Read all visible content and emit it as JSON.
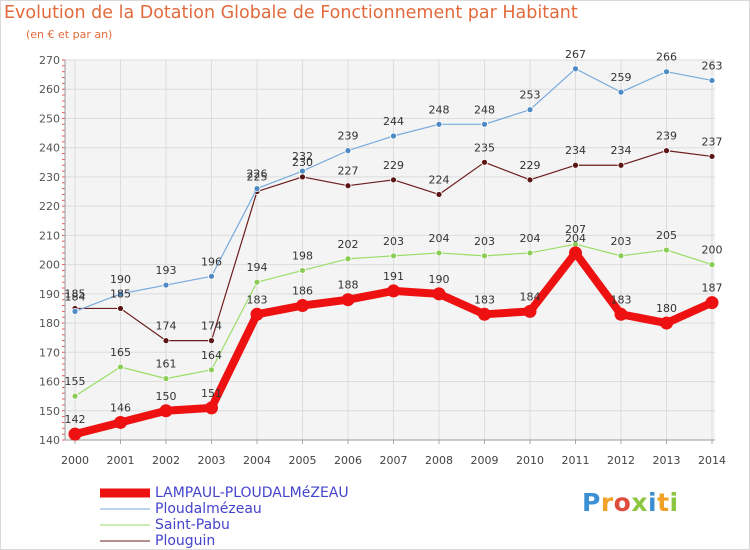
{
  "title": "Evolution de la Dotation Globale de Fonctionnement par Habitant",
  "subtitle": "(en € et par an)",
  "logo": {
    "letters": [
      "P",
      "r",
      "o",
      "x",
      "i",
      "t",
      "i"
    ],
    "colors": [
      "#3b8fd4",
      "#f2a128",
      "#e04c3c",
      "#8cc63f",
      "#3b8fd4",
      "#f2a128",
      "#8cc63f"
    ]
  },
  "chart_data": {
    "type": "line",
    "title": "Evolution de la Dotation Globale de Fonctionnement par Habitant",
    "subtitle": "(en € et par an)",
    "xlabel": "",
    "ylabel": "",
    "categories": [
      "2000",
      "2001",
      "2002",
      "2003",
      "2004",
      "2005",
      "2006",
      "2007",
      "2008",
      "2009",
      "2010",
      "2011",
      "2012",
      "2013",
      "2014"
    ],
    "ylim": [
      140,
      270
    ],
    "yticks": [
      140,
      150,
      160,
      170,
      180,
      190,
      200,
      210,
      220,
      230,
      240,
      250,
      260,
      270
    ],
    "grid": true,
    "legend_position": "bottom-left",
    "series": [
      {
        "name": "Plouguin",
        "color": "#6b1c1c",
        "marker": "#5a1515",
        "style": "thin",
        "values": [
          185,
          185,
          174,
          174,
          225,
          230,
          227,
          229,
          224,
          235,
          229,
          234,
          234,
          239,
          237
        ],
        "labels": [
          "185",
          "185",
          "174",
          "174",
          "225",
          "230",
          "227",
          "229",
          "224",
          "235",
          "229",
          "234",
          "234",
          "239",
          "237"
        ]
      },
      {
        "name": "Saint-Pabu",
        "color": "#99dd66",
        "marker": "#8acc55",
        "style": "thin",
        "values": [
          155,
          165,
          161,
          164,
          194,
          198,
          202,
          203,
          204,
          203,
          204,
          207,
          203,
          205,
          200
        ],
        "labels": [
          "155",
          "165",
          "161",
          "164",
          "194",
          "198",
          "202",
          "203",
          "204",
          "203",
          "204",
          "207",
          "203",
          "205",
          "200"
        ]
      },
      {
        "name": "Ploudalmézeau",
        "color": "#77aadd",
        "marker": "#4d8ac4",
        "style": "thin",
        "values": [
          184,
          190,
          193,
          196,
          226,
          232,
          239,
          244,
          248,
          248,
          253,
          267,
          259,
          266,
          263
        ],
        "labels": [
          "184",
          "190",
          "193",
          "196",
          "226",
          "232",
          "239",
          "244",
          "248",
          "248",
          "253",
          "267",
          "259",
          "266",
          "263"
        ]
      },
      {
        "name": "LAMPAUL-PLOUDALMéZEAU",
        "color": "#ee1111",
        "marker": "#ee1111",
        "style": "thick",
        "values": [
          142,
          146,
          150,
          151,
          183,
          186,
          188,
          191,
          190,
          183,
          184,
          204,
          183,
          180,
          187
        ],
        "labels": [
          "142",
          "146",
          "150",
          "151",
          "183",
          "186",
          "188",
          "191",
          "190",
          "183",
          "184",
          "204",
          "183",
          "180",
          "187"
        ]
      }
    ],
    "legend": [
      "LAMPAUL-PLOUDALMéZEAU",
      "Ploudalmézeau",
      "Saint-Pabu",
      "Plouguin"
    ]
  }
}
